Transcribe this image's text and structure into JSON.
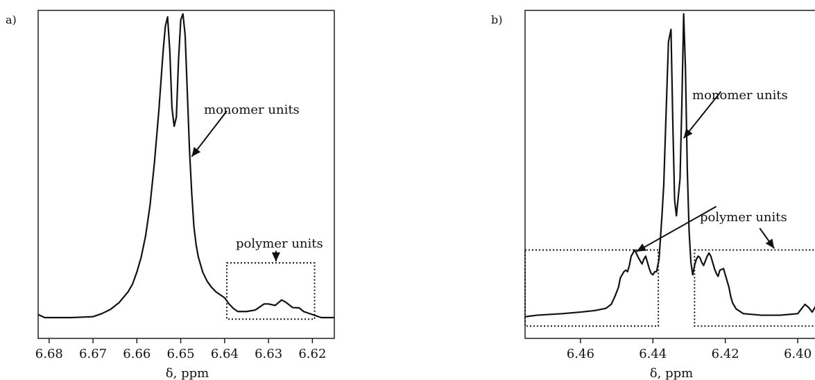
{
  "chart_data": [
    {
      "type": "line",
      "panel_label": "a)",
      "xlabel": "δ, ppm",
      "xlim": [
        6.6825,
        6.615
      ],
      "x_reversed": true,
      "xticks": [
        6.68,
        6.67,
        6.66,
        6.65,
        6.64,
        6.63,
        6.62
      ],
      "xtick_labels": [
        "6.68",
        "6.67",
        "6.66",
        "6.65",
        "6.64",
        "6.63",
        "6.62"
      ],
      "ylim": [
        -0.02,
        1.05
      ],
      "series": [
        {
          "x": [
            6.6825,
            6.681,
            6.675,
            6.67,
            6.668,
            6.666,
            6.664,
            6.662,
            6.661,
            6.66,
            6.659,
            6.658,
            6.657,
            6.656,
            6.655,
            6.6545,
            6.654,
            6.6535,
            6.653,
            6.6525,
            6.652,
            6.6515,
            6.651,
            6.6505,
            6.65,
            6.6495,
            6.649,
            6.6485,
            6.648,
            6.6475,
            6.647,
            6.6465,
            6.646,
            6.645,
            6.644,
            6.643,
            6.642,
            6.641,
            6.64,
            6.639,
            6.638,
            6.637,
            6.635,
            6.633,
            6.631,
            6.63,
            6.6285,
            6.627,
            6.626,
            6.6245,
            6.623,
            6.622,
            6.62,
            6.618,
            6.615
          ],
          "y": [
            0.01,
            0.0,
            0.0,
            0.003,
            0.013,
            0.027,
            0.05,
            0.085,
            0.11,
            0.15,
            0.2,
            0.27,
            0.37,
            0.51,
            0.68,
            0.78,
            0.88,
            0.96,
            0.99,
            0.88,
            0.69,
            0.63,
            0.66,
            0.85,
            0.98,
            1.0,
            0.93,
            0.74,
            0.55,
            0.41,
            0.3,
            0.24,
            0.2,
            0.15,
            0.12,
            0.1,
            0.085,
            0.075,
            0.065,
            0.045,
            0.03,
            0.02,
            0.02,
            0.025,
            0.045,
            0.045,
            0.04,
            0.058,
            0.05,
            0.033,
            0.032,
            0.02,
            0.01,
            0.0,
            0.0
          ]
        }
      ],
      "annotations": [
        {
          "text": "monomer units"
        },
        {
          "text": "polymer units"
        }
      ],
      "highlight_box": {
        "x": [
          6.6395,
          6.6195
        ],
        "y": [
          -0.005,
          0.18
        ]
      },
      "arrows": [
        {
          "from": [
            6.6395,
            0.68
          ],
          "to": [
            6.6475,
            0.53
          ]
        },
        {
          "from": [
            6.6283,
            0.22
          ],
          "to": [
            6.6283,
            0.185
          ]
        }
      ],
      "grid": false,
      "legend": "none"
    },
    {
      "type": "line",
      "panel_label": "b)",
      "xlabel": "δ, ppm",
      "xlim": [
        6.4753,
        6.3937
      ],
      "x_reversed": true,
      "xticks": [
        6.46,
        6.44,
        6.42,
        6.4
      ],
      "xtick_labels": [
        "6.46",
        "6.44",
        "6.42",
        "6.40"
      ],
      "ylim": [
        -0.02,
        1.05
      ],
      "series": [
        {
          "x": [
            6.4753,
            6.472,
            6.465,
            6.46,
            6.456,
            6.453,
            6.4515,
            6.4505,
            6.4495,
            6.449,
            6.448,
            6.4475,
            6.447,
            6.4465,
            6.446,
            6.445,
            6.444,
            6.443,
            6.4425,
            6.442,
            6.441,
            6.4405,
            6.44,
            6.4395,
            6.439,
            6.4383,
            6.4375,
            6.437,
            6.4365,
            6.4357,
            6.435,
            6.4345,
            6.434,
            6.4335,
            6.4325,
            6.432,
            6.4315,
            6.431,
            6.4305,
            6.43,
            6.4295,
            6.429,
            6.4285,
            6.428,
            6.4275,
            6.427,
            6.4265,
            6.426,
            6.4255,
            6.425,
            6.4245,
            6.424,
            6.4235,
            6.423,
            6.4225,
            6.422,
            6.4215,
            6.4205,
            6.42,
            6.419,
            6.4185,
            6.418,
            6.417,
            6.415,
            6.41,
            6.405,
            6.4,
            6.399,
            6.398,
            6.397,
            6.396,
            6.395,
            6.394,
            6.3937
          ],
          "y": [
            0.025,
            0.03,
            0.035,
            0.04,
            0.045,
            0.052,
            0.065,
            0.09,
            0.12,
            0.15,
            0.17,
            0.175,
            0.17,
            0.19,
            0.22,
            0.24,
            0.215,
            0.195,
            0.21,
            0.22,
            0.18,
            0.165,
            0.16,
            0.17,
            0.17,
            0.21,
            0.35,
            0.45,
            0.63,
            0.91,
            0.95,
            0.65,
            0.4,
            0.35,
            0.47,
            0.71,
            1.0,
            0.82,
            0.5,
            0.3,
            0.2,
            0.16,
            0.19,
            0.21,
            0.22,
            0.215,
            0.2,
            0.19,
            0.205,
            0.22,
            0.23,
            0.22,
            0.2,
            0.18,
            0.165,
            0.155,
            0.175,
            0.18,
            0.16,
            0.12,
            0.09,
            0.07,
            0.05,
            0.035,
            0.03,
            0.03,
            0.035,
            0.05,
            0.065,
            0.055,
            0.04,
            0.06,
            0.065,
            0.05
          ]
        }
      ],
      "annotations": [
        {
          "text": "monomer units"
        },
        {
          "text": "polymer units"
        }
      ],
      "highlight_boxes": [
        {
          "x": [
            6.4753,
            6.4385
          ],
          "y": [
            -0.005,
            0.24
          ]
        },
        {
          "x": [
            6.4285,
            6.3937
          ],
          "y": [
            -0.005,
            0.24
          ]
        }
      ],
      "arrows": [
        {
          "from": [
            6.4212,
            0.75
          ],
          "to": [
            6.4315,
            0.6
          ]
        },
        {
          "from": [
            6.4225,
            0.38
          ],
          "to": [
            6.4445,
            0.235
          ]
        },
        {
          "from": [
            6.4105,
            0.31
          ],
          "to": [
            6.4065,
            0.245
          ]
        }
      ],
      "grid": false,
      "legend": "none"
    }
  ]
}
